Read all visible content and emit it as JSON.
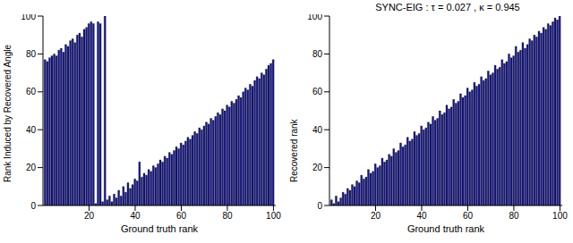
{
  "chart_data": [
    {
      "type": "bar",
      "x_label": "Ground truth rank",
      "y_label": "Rank Induced by Recovered Angle",
      "x": [
        1,
        2,
        3,
        4,
        5,
        6,
        7,
        8,
        9,
        10,
        11,
        12,
        13,
        14,
        15,
        16,
        17,
        18,
        19,
        20,
        21,
        22,
        23,
        24,
        25,
        26,
        27,
        28,
        29,
        30,
        31,
        32,
        33,
        34,
        35,
        36,
        37,
        38,
        39,
        40,
        41,
        42,
        43,
        44,
        45,
        46,
        47,
        48,
        49,
        50,
        51,
        52,
        53,
        54,
        55,
        56,
        57,
        58,
        59,
        60,
        61,
        62,
        63,
        64,
        65,
        66,
        67,
        68,
        69,
        70,
        71,
        72,
        73,
        74,
        75,
        76,
        77,
        78,
        79,
        80,
        81,
        82,
        83,
        84,
        85,
        86,
        87,
        88,
        89,
        90,
        91,
        92,
        93,
        94,
        95,
        96,
        97,
        98,
        99,
        100
      ],
      "values": [
        77,
        76,
        78,
        79,
        80,
        79,
        82,
        83,
        81,
        85,
        84,
        87,
        88,
        86,
        90,
        91,
        89,
        93,
        94,
        96,
        97,
        96,
        1,
        97,
        96,
        2,
        100,
        3,
        5,
        2,
        6,
        4,
        8,
        5,
        10,
        7,
        12,
        9,
        11,
        14,
        13,
        23,
        15,
        17,
        16,
        19,
        18,
        21,
        20,
        22,
        24,
        23,
        26,
        25,
        28,
        27,
        29,
        31,
        30,
        33,
        32,
        34,
        36,
        35,
        37,
        39,
        38,
        41,
        40,
        42,
        44,
        43,
        46,
        45,
        47,
        49,
        48,
        51,
        50,
        53,
        52,
        55,
        54,
        56,
        58,
        57,
        60,
        62,
        61,
        64,
        63,
        66,
        68,
        67,
        70,
        69,
        72,
        74,
        75,
        77
      ],
      "color": "#15158a",
      "xlim": [
        0,
        101
      ],
      "xticks": [
        20,
        40,
        60,
        80,
        100
      ],
      "ylim": [
        0,
        100
      ],
      "yticks": [
        0,
        20,
        40,
        60,
        80,
        100
      ]
    },
    {
      "type": "bar",
      "title": "SYNC-EIG : τ = 0.027 ,  κ = 0.945",
      "x_label": "Ground truth rank",
      "y_label": "Recovered rank",
      "x": [
        1,
        2,
        3,
        4,
        5,
        6,
        7,
        8,
        9,
        10,
        11,
        12,
        13,
        14,
        15,
        16,
        17,
        18,
        19,
        20,
        21,
        22,
        23,
        24,
        25,
        26,
        27,
        28,
        29,
        30,
        31,
        32,
        33,
        34,
        35,
        36,
        37,
        38,
        39,
        40,
        41,
        42,
        43,
        44,
        45,
        46,
        47,
        48,
        49,
        50,
        51,
        52,
        53,
        54,
        55,
        56,
        57,
        58,
        59,
        60,
        61,
        62,
        63,
        64,
        65,
        66,
        67,
        68,
        69,
        70,
        71,
        72,
        73,
        74,
        75,
        76,
        77,
        78,
        79,
        80,
        81,
        82,
        83,
        84,
        85,
        86,
        87,
        88,
        89,
        90,
        91,
        92,
        93,
        94,
        95,
        96,
        97,
        98,
        99,
        100
      ],
      "values": [
        3,
        1,
        5,
        2,
        4,
        7,
        6,
        9,
        8,
        11,
        10,
        13,
        12,
        16,
        14,
        15,
        19,
        17,
        18,
        22,
        20,
        21,
        25,
        23,
        24,
        27,
        26,
        30,
        28,
        29,
        33,
        31,
        32,
        36,
        34,
        35,
        39,
        37,
        38,
        42,
        40,
        41,
        44,
        43,
        47,
        45,
        46,
        50,
        48,
        49,
        53,
        51,
        52,
        56,
        54,
        55,
        59,
        57,
        58,
        62,
        60,
        61,
        65,
        63,
        64,
        68,
        66,
        67,
        71,
        69,
        70,
        74,
        72,
        73,
        77,
        75,
        76,
        80,
        78,
        79,
        84,
        81,
        82,
        86,
        83,
        85,
        88,
        87,
        90,
        89,
        92,
        91,
        94,
        93,
        96,
        95,
        97,
        99,
        98,
        100
      ],
      "color": "#15158a",
      "xlim": [
        0,
        101
      ],
      "xticks": [
        20,
        40,
        60,
        80,
        100
      ],
      "ylim": [
        0,
        100
      ],
      "yticks": [
        0,
        20,
        40,
        60,
        80,
        100
      ]
    }
  ]
}
